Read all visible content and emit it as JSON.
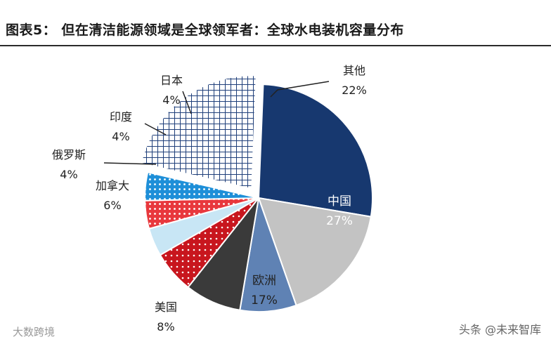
{
  "title": "图表5：  但在清洁能源领域是全球领军者：全球水电装机容量分布",
  "watermarks": {
    "left": "大数跨境",
    "right": "头条 @未来智库"
  },
  "chart_data": {
    "type": "pie",
    "title": "图表5：  但在清洁能源领域是全球领军者：全球水电装机容量分布",
    "slices": [
      {
        "label": "其他",
        "value": 22,
        "value_text": "22%",
        "color": "#1f3f7a",
        "pattern": "grid"
      },
      {
        "label": "中国",
        "value": 27,
        "value_text": "27%",
        "color": "#17386f",
        "pattern": "solid"
      },
      {
        "label": "欧洲",
        "value": 17,
        "value_text": "17%",
        "color": "#c3c3c3",
        "pattern": "solid"
      },
      {
        "label": "美国",
        "value": 8,
        "value_text": "8%",
        "color": "#5f82b4",
        "pattern": "solid"
      },
      {
        "label": "",
        "value": 8,
        "value_text": "",
        "color": "#3a3a3a",
        "pattern": "solid"
      },
      {
        "label": "加拿大",
        "value": 6,
        "value_text": "6%",
        "color": "#c8161e",
        "pattern": "dots"
      },
      {
        "label": "俄罗斯",
        "value": 4,
        "value_text": "4%",
        "color": "#c8e6f5",
        "pattern": "solid"
      },
      {
        "label": "印度",
        "value": 4,
        "value_text": "4%",
        "color": "#e8383d",
        "pattern": "dots"
      },
      {
        "label": "日本",
        "value": 4,
        "value_text": "4%",
        "color": "#1e8fd8",
        "pattern": "dots"
      }
    ]
  }
}
